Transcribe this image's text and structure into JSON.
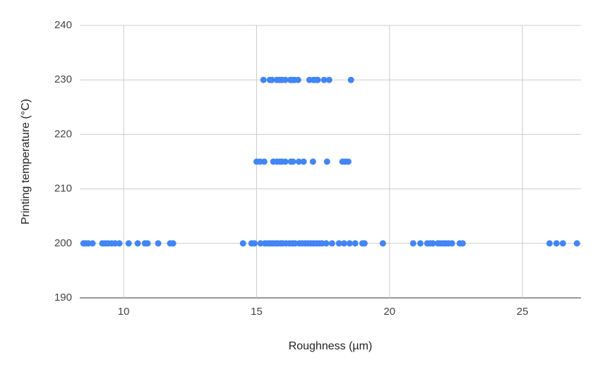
{
  "chart_data": {
    "type": "scatter",
    "x_label": "Roughness (µm)",
    "y_label": "Printing temperature (°C)",
    "x": [
      15.26,
      15.5,
      15.58,
      15.76,
      15.87,
      15.95,
      16.08,
      16.27,
      16.35,
      16.43,
      16.56,
      16.99,
      17.14,
      17.22,
      17.3,
      17.54,
      17.73,
      18.55,
      15.0,
      15.13,
      15.29,
      15.63,
      15.76,
      15.87,
      15.95,
      16.08,
      16.29,
      16.37,
      16.59,
      16.77,
      17.12,
      17.65,
      18.23,
      18.34,
      18.45,
      8.49,
      8.57,
      8.67,
      8.83,
      9.2,
      9.31,
      9.42,
      9.55,
      9.68,
      9.84,
      10.19,
      10.53,
      10.8,
      10.9,
      11.3,
      11.75,
      11.86,
      14.49,
      14.81,
      14.92,
      15.15,
      15.31,
      15.42,
      15.52,
      15.6,
      15.71,
      15.79,
      15.9,
      15.98,
      16.11,
      16.24,
      16.35,
      16.45,
      16.61,
      16.72,
      16.83,
      16.93,
      17.04,
      17.14,
      17.25,
      17.36,
      17.46,
      17.62,
      17.84,
      18.1,
      18.29,
      18.5,
      18.71,
      18.98,
      19.06,
      19.75,
      20.89,
      21.16,
      21.42,
      21.53,
      21.63,
      21.82,
      21.9,
      22.01,
      22.11,
      22.22,
      22.35,
      22.64,
      22.75,
      26.02,
      26.28,
      26.52,
      27.05
    ],
    "values": [
      230,
      230,
      230,
      230,
      230,
      230,
      230,
      230,
      230,
      230,
      230,
      230,
      230,
      230,
      230,
      230,
      230,
      230,
      215,
      215,
      215,
      215,
      215,
      215,
      215,
      215,
      215,
      215,
      215,
      215,
      215,
      215,
      215,
      215,
      215,
      200,
      200,
      200,
      200,
      200,
      200,
      200,
      200,
      200,
      200,
      200,
      200,
      200,
      200,
      200,
      200,
      200,
      200,
      200,
      200,
      200,
      200,
      200,
      200,
      200,
      200,
      200,
      200,
      200,
      200,
      200,
      200,
      200,
      200,
      200,
      200,
      200,
      200,
      200,
      200,
      200,
      200,
      200,
      200,
      200,
      200,
      200,
      200,
      200,
      200,
      200,
      200,
      200,
      200,
      200,
      200,
      200,
      200,
      200,
      200,
      200,
      200,
      200,
      200,
      200,
      200,
      200,
      200
    ],
    "color": "#4285f4",
    "xlim": [
      8.35,
      27.2
    ],
    "xticks": [
      10,
      15,
      20,
      25
    ],
    "ylim": [
      190,
      240
    ],
    "yticks": [
      190,
      200,
      210,
      220,
      230,
      240
    ],
    "grid": true
  }
}
